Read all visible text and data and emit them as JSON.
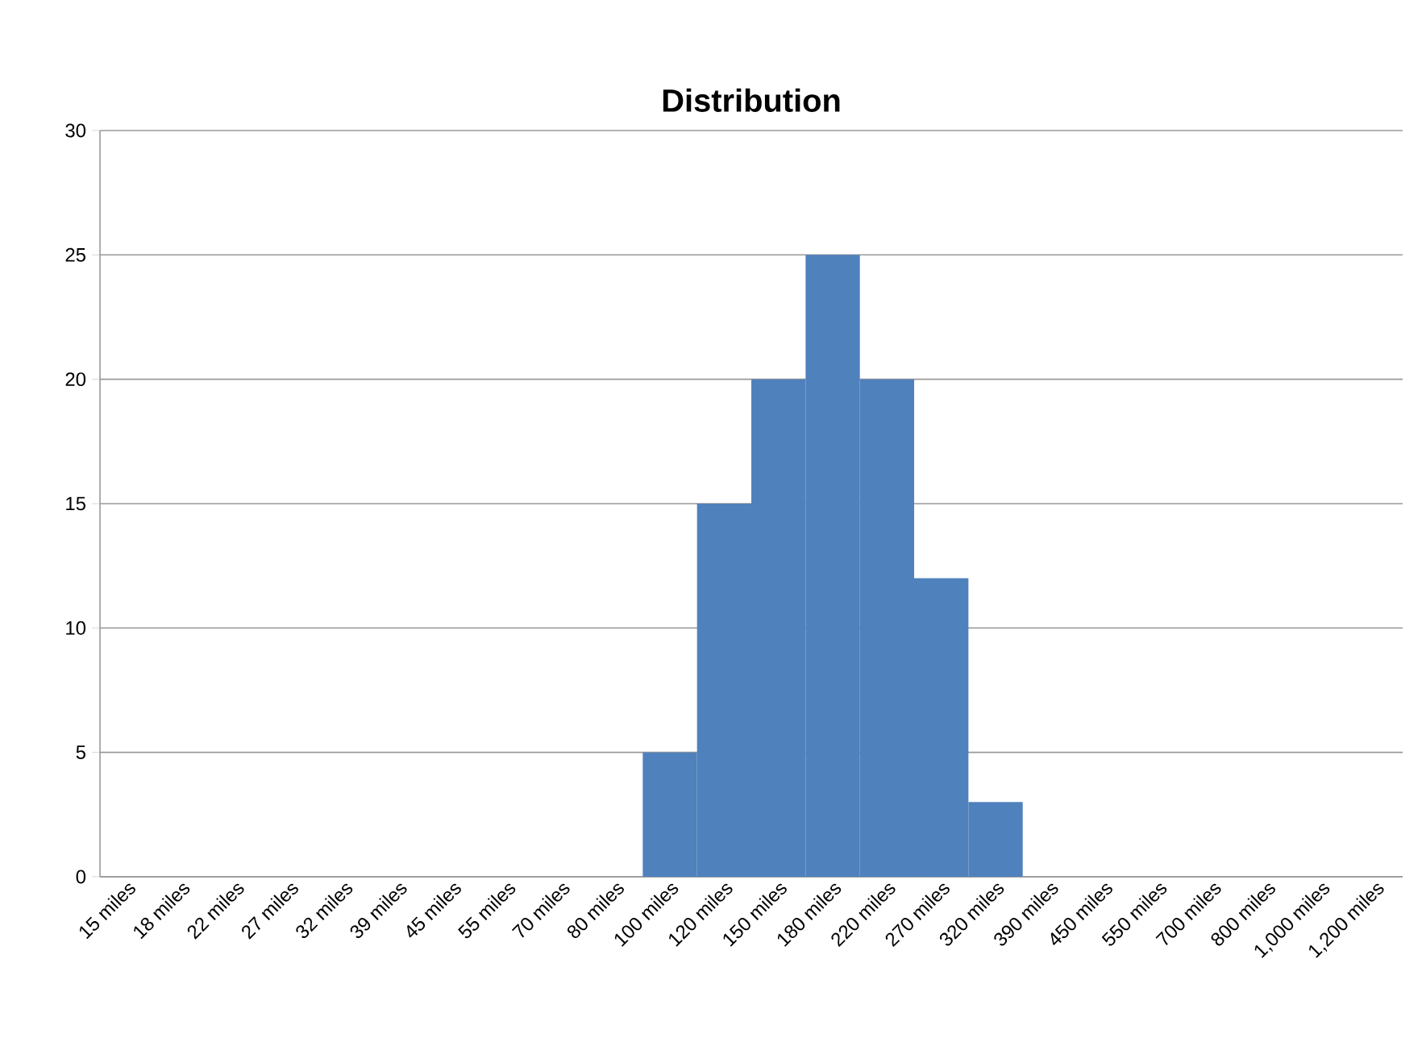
{
  "chart_data": {
    "type": "bar",
    "title": "Distribution",
    "categories": [
      "15 miles",
      "18 miles",
      "22 miles",
      "27 miles",
      "32 miles",
      "39 miles",
      "45 miles",
      "55 miles",
      "70 miles",
      "80 miles",
      "100 miles",
      "120 miles",
      "150 miles",
      "180 miles",
      "220 miles",
      "270 miles",
      "320 miles",
      "390 miles",
      "450 miles",
      "550 miles",
      "700 miles",
      "800 miles",
      "1,000 miles",
      "1,200 miles"
    ],
    "values": [
      0,
      0,
      0,
      0,
      0,
      0,
      0,
      0,
      0,
      0,
      5,
      15,
      20,
      25,
      20,
      12,
      3,
      0,
      0,
      0,
      0,
      0,
      0,
      0
    ],
    "color": "#4f81bd",
    "ylim": [
      0,
      30
    ],
    "yticks": [
      0,
      5,
      10,
      15,
      20,
      25,
      30
    ],
    "grid": "y"
  }
}
